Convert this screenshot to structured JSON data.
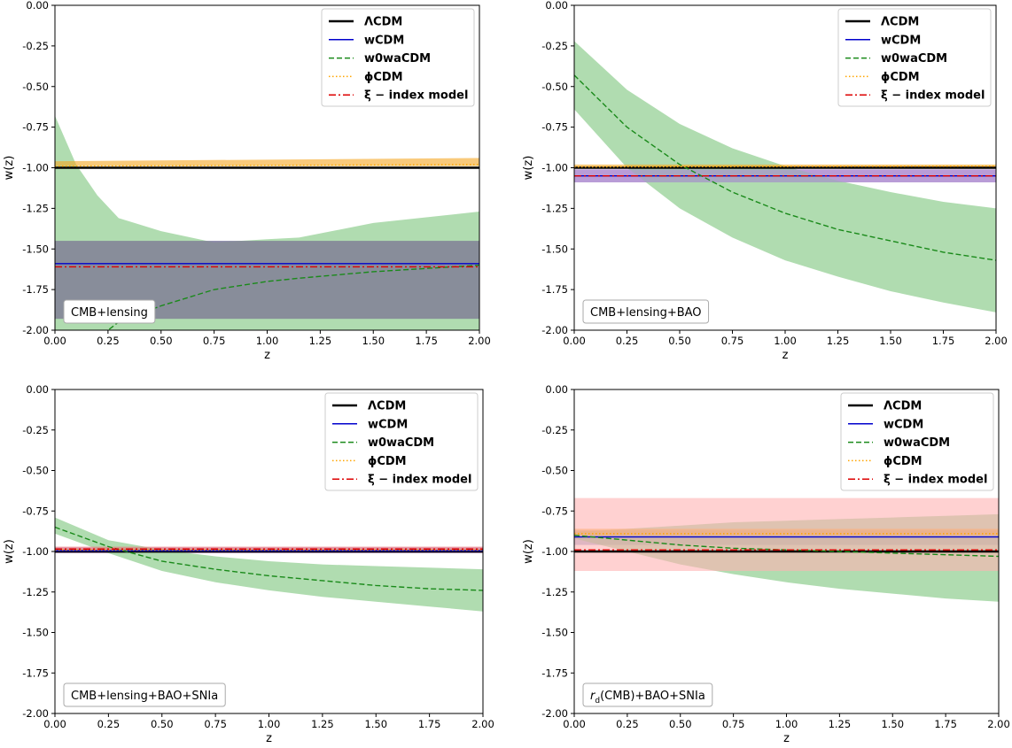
{
  "chart_data": [
    {
      "type": "line",
      "xlabel": "z",
      "ylabel": "w(z)",
      "xlim": [
        0,
        2
      ],
      "ylim": [
        -2,
        0
      ],
      "xticks": [
        "0.00",
        "0.25",
        "0.50",
        "0.75",
        "1.00",
        "1.25",
        "1.50",
        "1.75",
        "2.00"
      ],
      "yticks": [
        "0.00",
        "-0.25",
        "-0.50",
        "-0.75",
        "-1.00",
        "-1.25",
        "-1.50",
        "-1.75",
        "-2.00"
      ],
      "legend_position": "top-right",
      "annotation": "CMB+lensing",
      "series": [
        {
          "name": "ΛCDM",
          "color": "#000000",
          "style": "solid",
          "x": [
            0,
            2
          ],
          "y": [
            -1,
            -1
          ]
        },
        {
          "name": "wCDM",
          "color": "#0000cc",
          "style": "solid",
          "x": [
            0,
            2
          ],
          "y": [
            -1.59,
            -1.59
          ],
          "band": {
            "color": "#4a6fa5",
            "lower": [
              -1.93,
              -1.93
            ],
            "upper": [
              -1.45,
              -1.45
            ]
          }
        },
        {
          "name": "w0waCDM",
          "color": "#1a8a1a",
          "style": "dashed",
          "x": [
            0,
            0.25,
            0.3,
            0.5,
            0.75,
            1.0,
            1.15,
            1.5,
            2.0
          ],
          "y": [
            -2.2,
            -2.0,
            -1.95,
            -1.85,
            -1.75,
            -1.7,
            -1.68,
            -1.64,
            -1.6
          ],
          "band": {
            "color": "#7bc47b",
            "x": [
              0,
              0.1,
              0.2,
              0.3,
              0.5,
              0.75,
              1.0,
              1.15,
              1.5,
              2.0
            ],
            "lower": [
              -2.0,
              -2.0,
              -2.0,
              -2.0,
              -2.0,
              -2.0,
              -2.0,
              -2.0,
              -2.0,
              -2.0
            ],
            "upper": [
              -0.68,
              -0.98,
              -1.17,
              -1.31,
              -1.39,
              -1.46,
              -1.44,
              -1.43,
              -1.34,
              -1.27
            ]
          }
        },
        {
          "name": "ϕCDM",
          "color": "#ffa500",
          "style": "dotted",
          "x": [
            0,
            2
          ],
          "y": [
            -0.99,
            -0.98
          ],
          "band": {
            "color": "#f5a623",
            "x": [
              0,
              2
            ],
            "lower": [
              -0.99,
              -0.99
            ],
            "upper": [
              -0.96,
              -0.94
            ]
          }
        },
        {
          "name": "ξ − index model",
          "color": "#dd0000",
          "style": "dashdot",
          "x": [
            0,
            2
          ],
          "y": [
            -1.61,
            -1.61
          ],
          "band": {
            "color": "#8a7a9a",
            "lower": [
              -1.93,
              -1.93
            ],
            "upper": [
              -1.45,
              -1.45
            ]
          }
        }
      ]
    },
    {
      "type": "line",
      "xlabel": "z",
      "ylabel": "w(z)",
      "xlim": [
        0,
        2
      ],
      "ylim": [
        -2,
        0
      ],
      "xticks": [
        "0.00",
        "0.25",
        "0.50",
        "0.75",
        "1.00",
        "1.25",
        "1.50",
        "1.75",
        "2.00"
      ],
      "yticks": [
        "0.00",
        "-0.25",
        "-0.50",
        "-0.75",
        "-1.00",
        "-1.25",
        "-1.50",
        "-1.75",
        "-2.00"
      ],
      "legend_position": "top-right",
      "annotation": "CMB+lensing+BAO",
      "series": [
        {
          "name": "ΛCDM",
          "color": "#000000",
          "style": "solid",
          "x": [
            0,
            2
          ],
          "y": [
            -1,
            -1
          ]
        },
        {
          "name": "wCDM",
          "color": "#0000cc",
          "style": "solid",
          "x": [
            0,
            2
          ],
          "y": [
            -1.05,
            -1.05
          ],
          "band": {
            "color": "#9b59b6",
            "lower": [
              -1.09,
              -1.09
            ],
            "upper": [
              -1.01,
              -1.01
            ]
          }
        },
        {
          "name": "w0waCDM",
          "color": "#1a8a1a",
          "style": "dashed",
          "x": [
            0,
            0.25,
            0.5,
            0.75,
            1.0,
            1.25,
            1.5,
            1.75,
            2.0
          ],
          "y": [
            -0.43,
            -0.75,
            -0.98,
            -1.15,
            -1.28,
            -1.38,
            -1.45,
            -1.52,
            -1.57
          ],
          "band": {
            "color": "#7bc47b",
            "x": [
              0,
              0.25,
              0.5,
              0.75,
              1.0,
              1.25,
              1.5,
              1.75,
              2.0
            ],
            "lower": [
              -0.64,
              -1.0,
              -1.25,
              -1.43,
              -1.57,
              -1.67,
              -1.76,
              -1.83,
              -1.89
            ],
            "upper": [
              -0.22,
              -0.52,
              -0.73,
              -0.88,
              -0.99,
              -1.08,
              -1.15,
              -1.21,
              -1.25
            ]
          }
        },
        {
          "name": "ϕCDM",
          "color": "#ffa500",
          "style": "dotted",
          "x": [
            0,
            2
          ],
          "y": [
            -0.995,
            -0.99
          ],
          "band": {
            "color": "#f5a623",
            "x": [
              0,
              2
            ],
            "lower": [
              -1.0,
              -1.0
            ],
            "upper": [
              -0.98,
              -0.98
            ]
          }
        },
        {
          "name": "ξ − index model",
          "color": "#dd0000",
          "style": "dashdot",
          "x": [
            0,
            2
          ],
          "y": [
            -1.05,
            -1.05
          ],
          "band": {
            "color": "#b39ddb",
            "lower": [
              -1.09,
              -1.09
            ],
            "upper": [
              -1.01,
              -1.01
            ]
          }
        }
      ]
    },
    {
      "type": "line",
      "xlabel": "z",
      "ylabel": "w(z)",
      "xlim": [
        0,
        2
      ],
      "ylim": [
        -2,
        0
      ],
      "xticks": [
        "0.00",
        "0.25",
        "0.50",
        "0.75",
        "1.00",
        "1.25",
        "1.50",
        "1.75",
        "2.00"
      ],
      "yticks": [
        "0.00",
        "-0.25",
        "-0.50",
        "-0.75",
        "-1.00",
        "-1.25",
        "-1.50",
        "-1.75",
        "-2.00"
      ],
      "legend_position": "top-right",
      "annotation": "CMB+lensing+BAO+SNIa",
      "series": [
        {
          "name": "ΛCDM",
          "color": "#000000",
          "style": "solid",
          "x": [
            0,
            2
          ],
          "y": [
            -1,
            -1
          ]
        },
        {
          "name": "wCDM",
          "color": "#0000cc",
          "style": "solid",
          "x": [
            0,
            2
          ],
          "y": [
            -0.995,
            -0.995
          ],
          "band": {
            "color": "#9b59b6",
            "lower": [
              -1.01,
              -1.01
            ],
            "upper": [
              -0.975,
              -0.975
            ]
          }
        },
        {
          "name": "w0waCDM",
          "color": "#1a8a1a",
          "style": "dashed",
          "x": [
            0,
            0.25,
            0.5,
            0.75,
            1.0,
            1.25,
            1.5,
            1.75,
            2.0
          ],
          "y": [
            -0.85,
            -0.97,
            -1.06,
            -1.11,
            -1.15,
            -1.18,
            -1.21,
            -1.23,
            -1.24
          ],
          "band": {
            "color": "#7bc47b",
            "x": [
              0,
              0.25,
              0.5,
              0.75,
              1.0,
              1.25,
              1.5,
              1.75,
              2.0
            ],
            "lower": [
              -0.89,
              -1.01,
              -1.12,
              -1.19,
              -1.24,
              -1.28,
              -1.31,
              -1.34,
              -1.37
            ],
            "upper": [
              -0.79,
              -0.93,
              -0.99,
              -1.03,
              -1.06,
              -1.08,
              -1.09,
              -1.1,
              -1.11
            ]
          }
        },
        {
          "name": "ϕCDM",
          "color": "#ffa500",
          "style": "dotted",
          "x": [
            0,
            2
          ],
          "y": [
            -0.99,
            -0.99
          ],
          "band": {
            "color": "#f5a623",
            "x": [
              0,
              2
            ],
            "lower": [
              -1.0,
              -1.0
            ],
            "upper": [
              -0.985,
              -0.985
            ]
          }
        },
        {
          "name": "ξ − index model",
          "color": "#dd0000",
          "style": "dashdot",
          "x": [
            0,
            2
          ],
          "y": [
            -0.985,
            -0.985
          ],
          "band": {
            "color": "#f08080",
            "lower": [
              -1.005,
              -1.005
            ],
            "upper": [
              -0.97,
              -0.97
            ]
          }
        }
      ]
    },
    {
      "type": "line",
      "xlabel": "z",
      "ylabel": "w(z)",
      "xlim": [
        0,
        2
      ],
      "ylim": [
        -2,
        0
      ],
      "xticks": [
        "0.00",
        "0.25",
        "0.50",
        "0.75",
        "1.00",
        "1.25",
        "1.50",
        "1.75",
        "2.00"
      ],
      "yticks": [
        "0.00",
        "-0.25",
        "-0.50",
        "-0.75",
        "-1.00",
        "-1.25",
        "-1.50",
        "-1.75",
        "-2.00"
      ],
      "legend_position": "top-right",
      "annotation": "r_d(CMB)+BAO+SNIa",
      "annotation_parts": {
        "r": "r",
        "sub": "d",
        "rest": "(CMB)+BAO+SNIa"
      },
      "series": [
        {
          "name": "ΛCDM",
          "color": "#000000",
          "style": "solid",
          "x": [
            0,
            2
          ],
          "y": [
            -1,
            -1
          ]
        },
        {
          "name": "wCDM",
          "color": "#0000cc",
          "style": "solid",
          "x": [
            0,
            2
          ],
          "y": [
            -0.91,
            -0.91
          ],
          "band": {
            "color": "#7f8fc0",
            "lower": [
              -0.96,
              -0.96
            ],
            "upper": [
              -0.87,
              -0.87
            ]
          }
        },
        {
          "name": "w0waCDM",
          "color": "#1a8a1a",
          "style": "dashed",
          "x": [
            0,
            0.25,
            0.5,
            0.75,
            1.0,
            1.25,
            1.5,
            1.75,
            2.0
          ],
          "y": [
            -0.9,
            -0.93,
            -0.96,
            -0.98,
            -0.99,
            -1.0,
            -1.01,
            -1.02,
            -1.03
          ],
          "band": {
            "color": "#7bc47b",
            "x": [
              0,
              0.25,
              0.5,
              0.75,
              1.0,
              1.25,
              1.5,
              1.75,
              2.0
            ],
            "lower": [
              -0.92,
              -1.0,
              -1.08,
              -1.14,
              -1.19,
              -1.23,
              -1.26,
              -1.29,
              -1.31
            ],
            "upper": [
              -0.88,
              -0.86,
              -0.84,
              -0.82,
              -0.81,
              -0.8,
              -0.79,
              -0.78,
              -0.77
            ]
          }
        },
        {
          "name": "ϕCDM",
          "color": "#ffa500",
          "style": "dotted",
          "x": [
            0,
            2
          ],
          "y": [
            -0.89,
            -0.89
          ],
          "band": {
            "color": "#f5a623",
            "x": [
              0,
              2
            ],
            "lower": [
              -0.9,
              -0.9
            ],
            "upper": [
              -0.86,
              -0.86
            ]
          }
        },
        {
          "name": "ξ − index model",
          "color": "#dd0000",
          "style": "dashdot",
          "x": [
            0,
            2
          ],
          "y": [
            -0.99,
            -0.99
          ],
          "band": {
            "color": "#ffb3b3",
            "lower": [
              -1.12,
              -1.12
            ],
            "upper": [
              -0.67,
              -0.67
            ]
          }
        }
      ]
    }
  ]
}
